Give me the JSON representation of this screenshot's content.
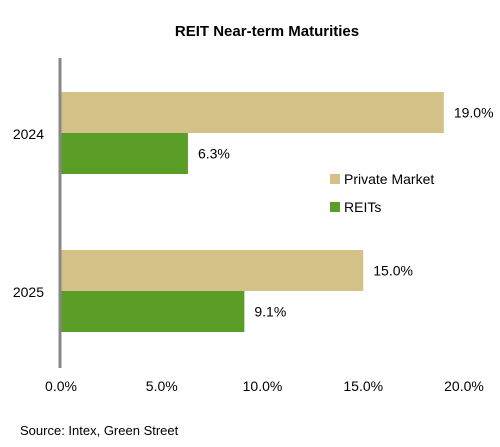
{
  "chart_data": {
    "type": "bar",
    "orientation": "horizontal",
    "title": "REIT Near-term Maturities",
    "categories": [
      "2024",
      "2025"
    ],
    "series": [
      {
        "name": "Private Market",
        "values": [
          19.0,
          15.0
        ],
        "labels": [
          "19.0%",
          "15.0%"
        ],
        "color": "#D4C187"
      },
      {
        "name": "REITs",
        "values": [
          6.3,
          9.1
        ],
        "labels": [
          "6.3%",
          "9.1%"
        ],
        "color": "#5A9E28"
      }
    ],
    "x_ticks": [
      "0.0%",
      "5.0%",
      "10.0%",
      "15.0%",
      "20.0%"
    ],
    "xlim": [
      0,
      20
    ],
    "xlabel": "",
    "ylabel": "",
    "grid": false,
    "legend_position": "right",
    "axis_color": "#888888"
  },
  "source_note": "Source: Intex, Green Street"
}
